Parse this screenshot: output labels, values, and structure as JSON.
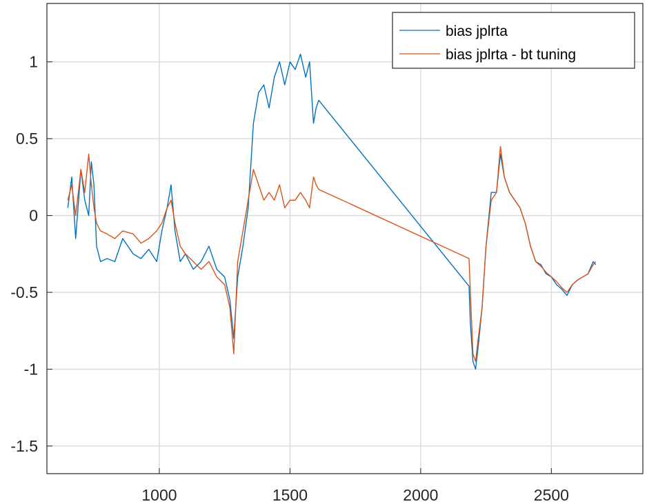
{
  "colors": {
    "series1": "#0072bd",
    "series2": "#d95319",
    "grid": "#dcdcdc",
    "axis": "#262626"
  },
  "chart_data": {
    "type": "line",
    "title": "",
    "xlabel": "",
    "ylabel": "",
    "xlim": [
      570,
      2850
    ],
    "ylim": [
      -1.68,
      1.38
    ],
    "grid": true,
    "legend_position": "top-right",
    "xticks": [
      1000,
      1500,
      2000,
      2500
    ],
    "xtick_labels": [
      "1000",
      "1500",
      "2000",
      "2500"
    ],
    "yticks": [
      1,
      0.5,
      0,
      -0.5,
      -1,
      -1.5
    ],
    "ytick_labels": [
      "1",
      "0.5",
      "0",
      "-0.5",
      "-1",
      "-1.5"
    ],
    "series": [
      {
        "name": "bias jplrta",
        "color": "#0072bd",
        "x": [
          650,
          665,
          680,
          700,
          715,
          730,
          740,
          750,
          760,
          775,
          800,
          830,
          860,
          900,
          930,
          960,
          990,
          1010,
          1030,
          1045,
          1060,
          1080,
          1100,
          1130,
          1160,
          1190,
          1220,
          1250,
          1270,
          1285,
          1300,
          1320,
          1340,
          1360,
          1380,
          1400,
          1420,
          1440,
          1460,
          1480,
          1500,
          1520,
          1540,
          1560,
          1575,
          1590,
          1600,
          1610,
          2185,
          2190,
          2200,
          2210,
          2220,
          2235,
          2250,
          2270,
          2290,
          2305,
          2320,
          2340,
          2360,
          2380,
          2400,
          2420,
          2440,
          2460,
          2480,
          2500,
          2520,
          2540,
          2560,
          2580,
          2600,
          2620,
          2640,
          2660,
          2670
        ],
        "y": [
          0.05,
          0.25,
          -0.15,
          0.3,
          0.1,
          0.0,
          0.35,
          0.2,
          -0.2,
          -0.3,
          -0.28,
          -0.3,
          -0.15,
          -0.25,
          -0.28,
          -0.22,
          -0.3,
          -0.1,
          0.05,
          0.2,
          -0.1,
          -0.3,
          -0.25,
          -0.35,
          -0.3,
          -0.2,
          -0.35,
          -0.4,
          -0.55,
          -0.8,
          -0.4,
          -0.2,
          0.05,
          0.6,
          0.8,
          0.85,
          0.7,
          0.9,
          1.0,
          0.85,
          1.0,
          0.95,
          1.05,
          0.9,
          1.0,
          0.6,
          0.7,
          0.75,
          -0.46,
          -0.7,
          -0.95,
          -1.0,
          -0.85,
          -0.6,
          -0.2,
          0.15,
          0.15,
          0.4,
          0.25,
          0.15,
          0.1,
          0.05,
          -0.05,
          -0.2,
          -0.3,
          -0.32,
          -0.38,
          -0.4,
          -0.45,
          -0.48,
          -0.52,
          -0.45,
          -0.42,
          -0.4,
          -0.38,
          -0.3,
          -0.32
        ]
      },
      {
        "name": "bias jplrta - bt tuning",
        "color": "#d95319",
        "x": [
          650,
          665,
          680,
          700,
          715,
          730,
          740,
          750,
          760,
          775,
          800,
          830,
          860,
          900,
          930,
          960,
          990,
          1010,
          1030,
          1045,
          1060,
          1080,
          1100,
          1130,
          1160,
          1190,
          1220,
          1250,
          1270,
          1285,
          1300,
          1320,
          1340,
          1360,
          1380,
          1400,
          1420,
          1440,
          1460,
          1480,
          1500,
          1520,
          1540,
          1560,
          1575,
          1590,
          1600,
          1610,
          2185,
          2190,
          2200,
          2210,
          2220,
          2235,
          2250,
          2270,
          2290,
          2305,
          2320,
          2340,
          2360,
          2380,
          2400,
          2420,
          2440,
          2460,
          2480,
          2500,
          2520,
          2540,
          2560,
          2580,
          2600,
          2620,
          2640,
          2660,
          2670
        ],
        "y": [
          0.1,
          0.2,
          0.0,
          0.3,
          0.15,
          0.4,
          0.2,
          0.05,
          -0.05,
          -0.1,
          -0.12,
          -0.15,
          -0.1,
          -0.12,
          -0.18,
          -0.15,
          -0.1,
          -0.05,
          0.05,
          0.1,
          -0.05,
          -0.2,
          -0.25,
          -0.3,
          -0.35,
          -0.3,
          -0.4,
          -0.45,
          -0.6,
          -0.9,
          -0.3,
          -0.1,
          0.1,
          0.3,
          0.2,
          0.1,
          0.15,
          0.1,
          0.2,
          0.05,
          0.1,
          0.1,
          0.15,
          0.1,
          0.05,
          0.25,
          0.2,
          0.17,
          -0.28,
          -0.5,
          -0.9,
          -0.95,
          -0.8,
          -0.6,
          -0.2,
          0.1,
          0.15,
          0.45,
          0.25,
          0.15,
          0.1,
          0.05,
          -0.05,
          -0.2,
          -0.3,
          -0.33,
          -0.37,
          -0.4,
          -0.43,
          -0.47,
          -0.5,
          -0.45,
          -0.42,
          -0.4,
          -0.38,
          -0.32,
          -0.3
        ]
      }
    ]
  }
}
